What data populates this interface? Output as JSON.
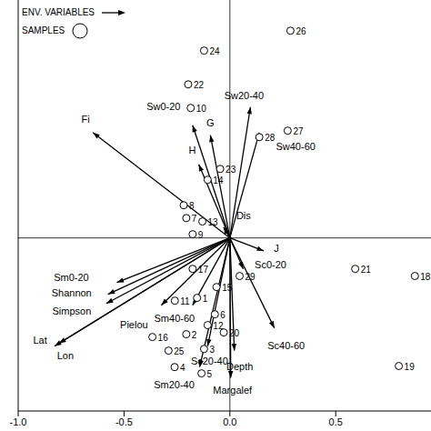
{
  "chart_data": {
    "type": "biplot",
    "xlim": [
      -1.0,
      0.95
    ],
    "ylim": [
      -0.8,
      1.1
    ],
    "xticks": [
      {
        "value": -1.0,
        "label": "-1.0"
      },
      {
        "value": -0.5,
        "label": "-0.5"
      },
      {
        "value": 0,
        "label": "0.0"
      },
      {
        "value": 0.5,
        "label": "0.5"
      }
    ],
    "tick_labels": "x",
    "legend": "top-left",
    "series": [
      {
        "name": "ENV. VARIABLES",
        "type": "vector",
        "color": "#000000",
        "labels": [
          "Fi",
          "Sw0-20",
          "H",
          "G",
          "Sw20-40",
          "Sw40-60",
          "Dis",
          "J",
          "Sc0-20",
          "Sc40-60",
          "Depth",
          "Margalef",
          "Sc20-40",
          "Sm20-40",
          "Sm40-60",
          "Pielou",
          "Shannon",
          "Simpson",
          "Sm0-20",
          "Lat",
          "Lon"
        ],
        "x": [
          -0.647,
          -0.176,
          -0.147,
          -0.092,
          0.097,
          0.139,
          -0.03,
          0.16,
          0.063,
          0.21,
          0.021,
          0.004,
          -0.105,
          -0.143,
          -0.176,
          -0.324,
          -0.576,
          -0.584,
          -0.534,
          -0.828,
          -0.807
        ],
        "y": [
          0.487,
          0.521,
          0.34,
          0.475,
          0.605,
          0.487,
          0.05,
          -0.06,
          -0.143,
          -0.416,
          -0.521,
          -0.647,
          -0.5,
          -0.597,
          -0.311,
          -0.311,
          -0.26,
          -0.303,
          -0.206,
          -0.5,
          -0.487
        ]
      },
      {
        "name": "SAMPLES",
        "type": "scatter",
        "marker": "circle",
        "color": "#000000",
        "labels": [
          "1",
          "2",
          "3",
          "4",
          "5",
          "6",
          "7",
          "8",
          "9",
          "10",
          "11",
          "12",
          "13",
          "14",
          "15",
          "16",
          "17",
          "18",
          "19",
          "20",
          "21",
          "22",
          "23",
          "24",
          "25",
          "26",
          "27",
          "28",
          "29"
        ],
        "x": [
          -0.155,
          -0.206,
          -0.122,
          -0.261,
          -0.134,
          -0.071,
          -0.206,
          -0.218,
          -0.176,
          -0.185,
          -0.26,
          -0.105,
          -0.13,
          -0.105,
          -0.063,
          -0.366,
          -0.176,
          0.874,
          0.798,
          -0.029,
          0.592,
          -0.197,
          -0.046,
          -0.122,
          -0.29,
          0.286,
          0.273,
          0.139,
          0.046
        ],
        "y": [
          -0.277,
          -0.445,
          -0.513,
          -0.597,
          -0.626,
          -0.353,
          0.092,
          0.151,
          0.017,
          0.601,
          -0.29,
          -0.403,
          0.076,
          0.269,
          -0.227,
          -0.458,
          -0.143,
          -0.176,
          -0.592,
          -0.437,
          -0.143,
          0.71,
          0.319,
          0.866,
          -0.521,
          0.958,
          0.496,
          0.466,
          -0.176
        ]
      }
    ]
  }
}
